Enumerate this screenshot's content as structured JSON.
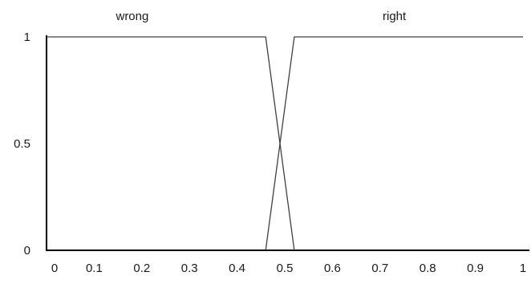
{
  "chart_data": {
    "type": "line",
    "title": "",
    "xlabel": "",
    "ylabel": "",
    "xlim": [
      0,
      1
    ],
    "ylim": [
      0,
      1
    ],
    "x_ticks": [
      "0",
      "0.1",
      "0.2",
      "0.3",
      "0.4",
      "0.5",
      "0.6",
      "0.7",
      "0.8",
      "0.9",
      "1"
    ],
    "y_ticks": [
      "0",
      "0.5",
      "1"
    ],
    "grid": false,
    "legend": "none",
    "series": [
      {
        "name": "wrong",
        "points": [
          [
            0,
            1
          ],
          [
            0.46,
            1
          ],
          [
            0.52,
            0
          ]
        ],
        "label_at": [
          0.18,
          1
        ]
      },
      {
        "name": "right",
        "points": [
          [
            0.46,
            0
          ],
          [
            0.52,
            1
          ],
          [
            1,
            1
          ]
        ],
        "label_at": [
          0.73,
          1
        ]
      }
    ],
    "colors": {
      "lines": "#404040",
      "axes": "#000000",
      "text": "#1a1a1a"
    }
  }
}
